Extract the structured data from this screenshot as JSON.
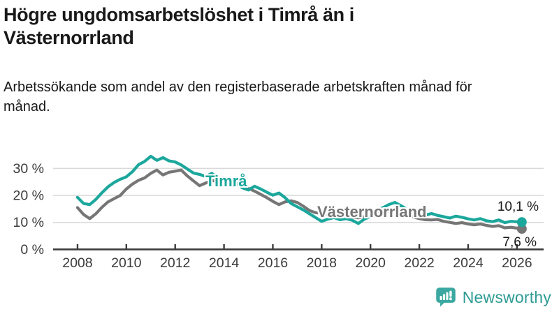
{
  "header": {
    "title": "Högre ungdomsarbetslöshet i Timrå än i Västernorrland",
    "subtitle": "Arbetssökande som andel av den registerbaserade arbetskraften månad för månad."
  },
  "footer": {
    "brand": "Newsworthy",
    "logo_icon": "newsworthy-chart-bubble-icon"
  },
  "colors": {
    "timra_line": "#1ba79c",
    "vasternorrland_line": "#767676",
    "axis": "#3b3b3b",
    "grid": "#d9d9d9",
    "text": "#191919",
    "logo_teal": "#3ba8a1",
    "logo_text": "#2e9c94"
  },
  "chart_data": {
    "type": "line",
    "title": "Högre ungdomsarbetslöshet i Timrå än i Västernorrland",
    "xlabel": "",
    "ylabel": "",
    "xlim": [
      2007.0,
      2027.1
    ],
    "ylim": [
      0,
      37
    ],
    "grid": "horizontal",
    "legend_position": "inline-labels",
    "y_ticks": [
      {
        "value": 0,
        "label": "0 %"
      },
      {
        "value": 10,
        "label": "10 %"
      },
      {
        "value": 20,
        "label": "20 %"
      },
      {
        "value": 30,
        "label": "30 %"
      }
    ],
    "x_ticks": [
      {
        "value": 2008,
        "label": "2008"
      },
      {
        "value": 2010,
        "label": "2010"
      },
      {
        "value": 2012,
        "label": "2012"
      },
      {
        "value": 2014,
        "label": "2014"
      },
      {
        "value": 2016,
        "label": "2016"
      },
      {
        "value": 2018,
        "label": "2018"
      },
      {
        "value": 2020,
        "label": "2020"
      },
      {
        "value": 2022,
        "label": "2022"
      },
      {
        "value": 2024,
        "label": "2024"
      },
      {
        "value": 2026,
        "label": "2026"
      }
    ],
    "x": [
      2008,
      2008.25,
      2008.5,
      2008.75,
      2009,
      2009.25,
      2009.5,
      2009.75,
      2010,
      2010.25,
      2010.5,
      2010.75,
      2011,
      2011.25,
      2011.5,
      2011.75,
      2012,
      2012.25,
      2012.5,
      2012.75,
      2013,
      2013.25,
      2013.5,
      2013.75,
      2014,
      2014.25,
      2014.5,
      2014.75,
      2015,
      2015.25,
      2015.5,
      2015.75,
      2016,
      2016.25,
      2016.5,
      2016.75,
      2017,
      2017.25,
      2017.5,
      2017.75,
      2018,
      2018.25,
      2018.5,
      2018.75,
      2019,
      2019.25,
      2019.5,
      2019.75,
      2020,
      2020.25,
      2020.5,
      2020.75,
      2021,
      2021.25,
      2021.5,
      2021.75,
      2022,
      2022.25,
      2022.5,
      2022.75,
      2023,
      2023.25,
      2023.5,
      2023.75,
      2024,
      2024.25,
      2024.5,
      2024.75,
      2025,
      2025.25,
      2025.5,
      2025.75,
      2026.2
    ],
    "series": [
      {
        "name": "Timrå",
        "color": "#1ba79c",
        "end_label": "10,1 %",
        "values": [
          19.3,
          17.0,
          16.6,
          18.5,
          21.0,
          23.2,
          24.8,
          26.0,
          26.9,
          28.8,
          31.4,
          32.6,
          34.5,
          33.0,
          34.0,
          32.8,
          32.4,
          31.3,
          29.8,
          28.3,
          27.8,
          27.0,
          28.2,
          26.3,
          24.6,
          23.4,
          24.4,
          22.8,
          22.0,
          23.4,
          22.4,
          21.2,
          20.1,
          20.9,
          19.2,
          17.0,
          15.8,
          14.6,
          13.2,
          11.8,
          10.4,
          11.2,
          11.8,
          11.0,
          11.4,
          10.8,
          9.6,
          11.2,
          12.2,
          14.6,
          15.4,
          16.6,
          17.4,
          16.2,
          14.8,
          14.0,
          13.4,
          12.7,
          13.3,
          12.6,
          12.1,
          11.6,
          12.3,
          11.9,
          11.3,
          10.9,
          11.4,
          10.6,
          10.3,
          10.9,
          9.9,
          10.4,
          10.1
        ]
      },
      {
        "name": "Västernorrland",
        "color": "#767676",
        "end_label": "7,6 %",
        "values": [
          15.5,
          12.9,
          11.4,
          13.2,
          15.6,
          17.6,
          18.8,
          20.0,
          22.4,
          24.2,
          25.6,
          26.5,
          28.2,
          29.4,
          27.6,
          28.6,
          29.0,
          29.4,
          27.2,
          25.4,
          23.6,
          24.6,
          25.6,
          25.0,
          24.2,
          25.2,
          24.6,
          23.4,
          22.6,
          21.6,
          20.4,
          19.2,
          17.8,
          16.6,
          17.6,
          18.0,
          17.4,
          16.0,
          14.4,
          13.6,
          13.4,
          12.9,
          12.4,
          12.7,
          12.4,
          12.0,
          11.7,
          12.1,
          12.6,
          14.0,
          14.4,
          14.2,
          14.6,
          13.6,
          12.6,
          12.0,
          11.4,
          11.0,
          10.9,
          11.1,
          10.4,
          10.0,
          9.6,
          9.9,
          9.4,
          9.1,
          9.4,
          8.9,
          8.5,
          8.8,
          8.0,
          8.2,
          7.6
        ]
      }
    ]
  }
}
